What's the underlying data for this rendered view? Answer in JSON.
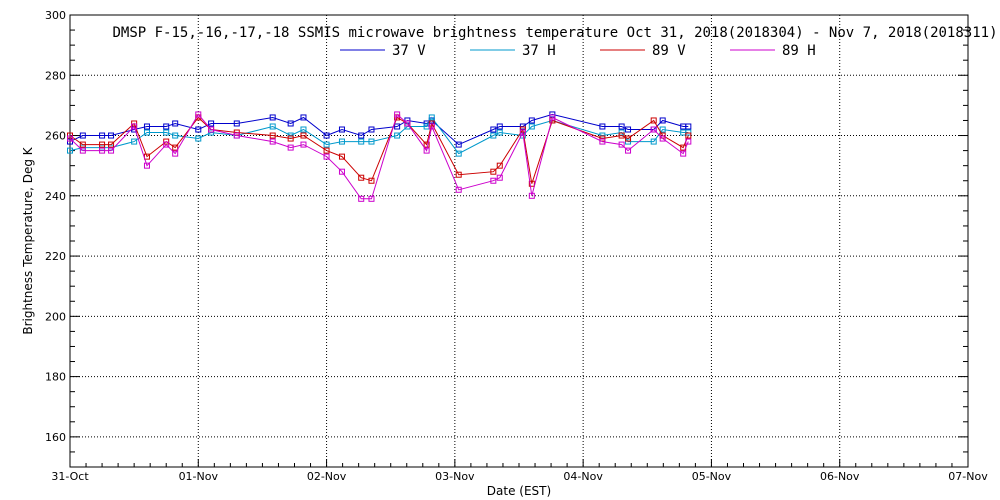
{
  "chart_data": {
    "type": "line",
    "title": "DMSP F-15,-16,-17,-18 SSMIS microwave brightness temperature Oct 31, 2018(2018304) - Nov  7, 2018(2018311)",
    "xlabel": "Date (EST)",
    "ylabel": "Brightness Temperature, Deg K",
    "xlim": [
      0,
      7
    ],
    "ylim": [
      150,
      300
    ],
    "x_tick_labels": [
      "31-Oct",
      "01-Nov",
      "02-Nov",
      "03-Nov",
      "04-Nov",
      "05-Nov",
      "06-Nov",
      "07-Nov"
    ],
    "y_ticks": [
      160,
      180,
      200,
      220,
      240,
      260,
      280,
      300
    ],
    "y_ticks_labeled": [
      160,
      180,
      200,
      220,
      240,
      260,
      280,
      300
    ],
    "grid": true,
    "legend_position": "top-center",
    "series": [
      {
        "name": "37 V",
        "color": "#0000cc",
        "x": [
          0.0,
          0.1,
          0.25,
          0.32,
          0.5,
          0.6,
          0.75,
          0.82,
          1.0,
          1.1,
          1.3,
          1.58,
          1.72,
          1.82,
          2.0,
          2.12,
          2.27,
          2.35,
          2.55,
          2.63,
          2.78,
          2.82,
          3.03,
          3.3,
          3.35,
          3.53,
          3.6,
          3.76,
          4.15,
          4.3,
          4.35,
          4.55,
          4.62,
          4.78,
          4.82
        ],
        "values": [
          258,
          260,
          260,
          260,
          262,
          263,
          263,
          264,
          262,
          264,
          264,
          266,
          264,
          266,
          260,
          262,
          260,
          262,
          263,
          265,
          264,
          265,
          257,
          262,
          263,
          263,
          265,
          267,
          263,
          263,
          262,
          262,
          265,
          263,
          263
        ]
      },
      {
        "name": "37 H",
        "color": "#0099cc",
        "x": [
          0.0,
          0.1,
          0.25,
          0.32,
          0.5,
          0.6,
          0.75,
          0.82,
          1.0,
          1.1,
          1.3,
          1.58,
          1.72,
          1.82,
          2.0,
          2.12,
          2.27,
          2.35,
          2.55,
          2.63,
          2.78,
          2.82,
          3.03,
          3.3,
          3.35,
          3.53,
          3.6,
          3.76,
          4.15,
          4.3,
          4.35,
          4.55,
          4.62,
          4.78,
          4.82
        ],
        "values": [
          255,
          256,
          256,
          256,
          258,
          261,
          261,
          260,
          259,
          261,
          260,
          263,
          260,
          262,
          257,
          258,
          258,
          258,
          260,
          263,
          263,
          266,
          254,
          260,
          261,
          260,
          263,
          265,
          260,
          261,
          258,
          258,
          262,
          261,
          261
        ]
      },
      {
        "name": "89 V",
        "color": "#cc0000",
        "x": [
          0.0,
          0.1,
          0.25,
          0.32,
          0.5,
          0.6,
          0.75,
          0.82,
          1.0,
          1.1,
          1.3,
          1.58,
          1.72,
          1.82,
          2.0,
          2.12,
          2.27,
          2.35,
          2.55,
          2.63,
          2.78,
          2.82,
          3.03,
          3.3,
          3.35,
          3.53,
          3.6,
          3.76,
          4.15,
          4.3,
          4.35,
          4.55,
          4.62,
          4.78,
          4.82
        ],
        "values": [
          260,
          257,
          257,
          257,
          264,
          253,
          258,
          256,
          266,
          262,
          261,
          260,
          259,
          260,
          255,
          253,
          246,
          245,
          266,
          264,
          257,
          264,
          247,
          248,
          250,
          262,
          244,
          265,
          259,
          260,
          259,
          265,
          260,
          256,
          260
        ]
      },
      {
        "name": "89 H",
        "color": "#cc00cc",
        "x": [
          0.0,
          0.1,
          0.25,
          0.32,
          0.5,
          0.6,
          0.75,
          0.82,
          1.0,
          1.1,
          1.3,
          1.58,
          1.72,
          1.82,
          2.0,
          2.12,
          2.27,
          2.35,
          2.55,
          2.63,
          2.78,
          2.82,
          3.03,
          3.3,
          3.35,
          3.53,
          3.6,
          3.76,
          4.15,
          4.3,
          4.35,
          4.55,
          4.62,
          4.78,
          4.82
        ],
        "values": [
          259,
          255,
          255,
          255,
          263,
          250,
          257,
          254,
          267,
          262,
          260,
          258,
          256,
          257,
          253,
          248,
          239,
          239,
          267,
          264,
          255,
          263,
          242,
          245,
          246,
          261,
          240,
          266,
          258,
          257,
          255,
          262,
          259,
          254,
          258
        ]
      }
    ]
  }
}
